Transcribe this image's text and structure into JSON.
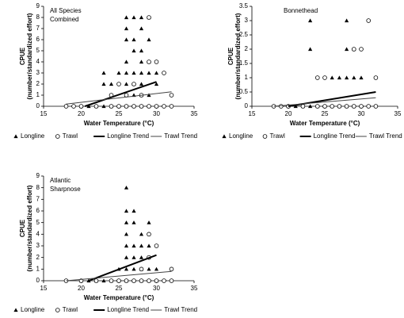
{
  "chart_data": [
    {
      "type": "scatter",
      "title": [
        "All Species",
        "Combined"
      ],
      "y_label": [
        "CPUE",
        "(number/standardized effort)"
      ],
      "x_label": "Water Temperature (°C)",
      "xlim": [
        15,
        35
      ],
      "xticks": [
        15,
        20,
        25,
        30,
        35
      ],
      "ylim": [
        0,
        9
      ],
      "yticks": [
        0,
        1,
        2,
        3,
        4,
        5,
        6,
        7,
        8,
        9
      ],
      "series": [
        {
          "name": "Longline",
          "marker": "triangle",
          "color": "#000000",
          "x": [
            20,
            21,
            22,
            23,
            23,
            23,
            24,
            24,
            25,
            25,
            26,
            26,
            26,
            26,
            26,
            26,
            26,
            26,
            27,
            27,
            27,
            27,
            27,
            27,
            27,
            28,
            28,
            28,
            28,
            28,
            28,
            28,
            28,
            29,
            29,
            29,
            29,
            29,
            29,
            30,
            30,
            30
          ],
          "values": [
            0,
            0,
            0,
            0,
            2,
            3,
            0,
            2,
            0,
            3,
            0,
            1,
            2,
            3,
            4,
            6,
            7,
            8,
            0,
            1,
            2,
            3,
            5,
            6,
            8,
            0,
            1,
            2,
            3,
            4,
            5,
            7,
            8,
            0,
            1,
            3,
            4,
            6,
            8,
            0,
            2,
            3
          ]
        },
        {
          "name": "Trawl",
          "marker": "circle",
          "color": "#000000",
          "x": [
            18,
            19,
            20,
            22,
            24,
            24,
            25,
            25,
            26,
            26,
            27,
            27,
            28,
            28,
            29,
            29,
            29,
            30,
            30,
            31,
            31,
            32,
            32
          ],
          "values": [
            0,
            0,
            0,
            0,
            0,
            1,
            0,
            2,
            0,
            1,
            0,
            2,
            0,
            1,
            0,
            4,
            8,
            0,
            4,
            0,
            3,
            0,
            1
          ]
        },
        {
          "name": "Longline Trend",
          "marker": "line",
          "color": "#000000",
          "width": 2,
          "x": [
            20.5,
            30
          ],
          "values": [
            0,
            2.2
          ]
        },
        {
          "name": "Trawl Trend",
          "marker": "line",
          "color": "#444444",
          "width": 1,
          "x": [
            18,
            32
          ],
          "values": [
            0.2,
            1.3
          ]
        }
      ]
    },
    {
      "type": "scatter",
      "title": [
        "Bonnethead"
      ],
      "y_label": [
        "CPUE",
        "(number/standardized effort)"
      ],
      "x_label": "Water Temperature (°C)",
      "xlim": [
        15,
        35
      ],
      "xticks": [
        15,
        20,
        25,
        30,
        35
      ],
      "ylim": [
        0,
        3.5
      ],
      "yticks": [
        0,
        0.5,
        1,
        1.5,
        2,
        2.5,
        3,
        3.5
      ],
      "series": [
        {
          "name": "Longline",
          "marker": "triangle",
          "color": "#000000",
          "x": [
            20,
            21,
            22,
            23,
            23,
            23,
            24,
            25,
            26,
            26,
            27,
            27,
            28,
            28,
            28,
            28,
            29,
            29,
            29,
            30,
            30
          ],
          "values": [
            0,
            0,
            0,
            0,
            2,
            3,
            0,
            0,
            0,
            1,
            0,
            1,
            0,
            1,
            2,
            3,
            0,
            1,
            2,
            0,
            1
          ]
        },
        {
          "name": "Trawl",
          "marker": "circle",
          "color": "#000000",
          "x": [
            18,
            19,
            20,
            22,
            24,
            24,
            25,
            25,
            26,
            27,
            28,
            29,
            29,
            30,
            30,
            31,
            31,
            32,
            32
          ],
          "values": [
            0,
            0,
            0,
            0,
            0,
            1,
            0,
            1,
            0,
            0,
            0,
            0,
            2,
            0,
            2,
            0,
            3,
            0,
            1
          ]
        },
        {
          "name": "Longline Trend",
          "marker": "line",
          "color": "#000000",
          "width": 2,
          "x": [
            20,
            32
          ],
          "values": [
            0,
            0.5
          ]
        },
        {
          "name": "Trawl Trend",
          "marker": "line",
          "color": "#444444",
          "width": 1,
          "x": [
            18,
            32
          ],
          "values": [
            0,
            0.3
          ]
        }
      ]
    },
    {
      "type": "scatter",
      "title": [
        "Atlantic",
        "Sharpnose"
      ],
      "y_label": [
        "CPUE",
        "(number/standardized effort)"
      ],
      "x_label": "Water Temperature (°C)",
      "xlim": [
        15,
        35
      ],
      "xticks": [
        15,
        20,
        25,
        30,
        35
      ],
      "ylim": [
        0,
        9
      ],
      "yticks": [
        0,
        1,
        2,
        3,
        4,
        5,
        6,
        7,
        8,
        9
      ],
      "series": [
        {
          "name": "Longline",
          "marker": "triangle",
          "color": "#000000",
          "x": [
            20,
            21,
            22,
            23,
            24,
            25,
            25,
            26,
            26,
            26,
            26,
            26,
            26,
            26,
            26,
            27,
            27,
            27,
            27,
            27,
            27,
            28,
            28,
            28,
            28,
            28,
            29,
            29,
            29,
            29,
            29,
            30,
            30
          ],
          "values": [
            0,
            0,
            0,
            0,
            0,
            0,
            1,
            0,
            1,
            2,
            3,
            4,
            5,
            6,
            8,
            0,
            1,
            2,
            3,
            5,
            6,
            0,
            1,
            2,
            3,
            4,
            0,
            1,
            2,
            3,
            5,
            0,
            1
          ]
        },
        {
          "name": "Trawl",
          "marker": "circle",
          "color": "#000000",
          "x": [
            18,
            20,
            22,
            24,
            25,
            26,
            27,
            28,
            28,
            29,
            29,
            29,
            30,
            30,
            31,
            32,
            32
          ],
          "values": [
            0,
            0,
            0,
            0,
            0,
            0,
            0,
            0,
            1,
            0,
            2,
            4,
            0,
            3,
            0,
            0,
            1
          ]
        },
        {
          "name": "Longline Trend",
          "marker": "line",
          "color": "#000000",
          "width": 2,
          "x": [
            21,
            30
          ],
          "values": [
            0,
            2.2
          ]
        },
        {
          "name": "Trawl Trend",
          "marker": "line",
          "color": "#444444",
          "width": 1,
          "x": [
            18,
            32
          ],
          "values": [
            0,
            0.8
          ]
        }
      ]
    }
  ]
}
